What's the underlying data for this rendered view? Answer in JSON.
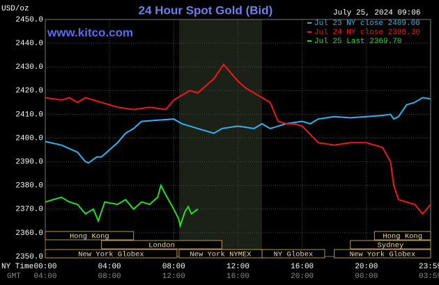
{
  "chart_data": {
    "type": "line",
    "title": "24 Hour Spot Gold (Bid)",
    "website": "www.kitco.com",
    "unit_label": "USD/oz",
    "timestamp": "July 25, 2024 09:06",
    "x_axis_label": "NY Time",
    "x_axis2_label": "GMT",
    "xlim": [
      0,
      24
    ],
    "ylim": [
      2350,
      2450
    ],
    "xticks": [
      {
        "value": 0,
        "label": "00:00"
      },
      {
        "value": 4,
        "label": "04:00"
      },
      {
        "value": 8,
        "label": "08:00"
      },
      {
        "value": 12,
        "label": "12:00"
      },
      {
        "value": 16,
        "label": "16:00"
      },
      {
        "value": 20,
        "label": "20:00"
      },
      {
        "value": 23.98,
        "label": "23:59"
      }
    ],
    "gmt_labels": [
      "04:00",
      "08:00",
      "12:00",
      "16:00",
      "20:00",
      "00:00",
      "03:59"
    ],
    "yticks": [
      {
        "value": 2350,
        "label": "2350.0"
      },
      {
        "value": 2360,
        "label": "2360.0"
      },
      {
        "value": 2370,
        "label": "2370.0"
      },
      {
        "value": 2380,
        "label": "2380.0"
      },
      {
        "value": 2390,
        "label": "2390.0"
      },
      {
        "value": 2400,
        "label": "2400.0"
      },
      {
        "value": 2410,
        "label": "2410.0"
      },
      {
        "value": 2420,
        "label": "2420.0"
      },
      {
        "value": 2430,
        "label": "2430.0"
      },
      {
        "value": 2440,
        "label": "2440.0"
      },
      {
        "value": 2450,
        "label": "2450.0"
      }
    ],
    "grid": true,
    "shaded_region": [
      8.33,
      13.5
    ],
    "series": [
      {
        "name": "Jul 23 NY close 2409.00",
        "color": "#29b6f0",
        "x": [
          0,
          1,
          2,
          2.5,
          2.7,
          3.2,
          3.5,
          4,
          4.5,
          5,
          5.5,
          6,
          7,
          8,
          8.5,
          9,
          9.5,
          10,
          10.5,
          11,
          12,
          13,
          13.5,
          14,
          14.5,
          15,
          16,
          16.5,
          17,
          18,
          19,
          20,
          21,
          21.5,
          21.7,
          22,
          22.5,
          23,
          23.5,
          24
        ],
        "values": [
          2398.5,
          2397,
          2394,
          2390,
          2389.5,
          2392,
          2392,
          2395,
          2398,
          2402,
          2404,
          2407,
          2407.5,
          2408,
          2406,
          2405,
          2404,
          2403,
          2402,
          2404,
          2405,
          2404,
          2406,
          2404,
          2405,
          2406,
          2407,
          2406,
          2408,
          2409,
          2408.5,
          2409,
          2409.5,
          2410,
          2408,
          2409,
          2414,
          2415,
          2417,
          2416.5
        ]
      },
      {
        "name": "Jul 24 NY close 2396.30",
        "color": "#f01818",
        "x": [
          0,
          1,
          1.5,
          2,
          2.5,
          3.5,
          4.5,
          5.5,
          6.5,
          7.5,
          8,
          8.5,
          9,
          9.5,
          10,
          10.5,
          11.1,
          12,
          12.5,
          13,
          14,
          14.5,
          15,
          15.5,
          16,
          17,
          18,
          19,
          20,
          21,
          21.5,
          21.7,
          22,
          23,
          23.5,
          24
        ],
        "values": [
          2417,
          2416,
          2417,
          2415,
          2417,
          2415,
          2413,
          2412,
          2413,
          2412,
          2416,
          2418,
          2420,
          2419,
          2422,
          2425,
          2431,
          2424,
          2421,
          2419,
          2415,
          2407,
          2406,
          2406,
          2405,
          2398,
          2397,
          2398,
          2398,
          2396,
          2390,
          2380,
          2374,
          2372,
          2368,
          2372
        ]
      },
      {
        "name": "Jul 25 Last 2369.70",
        "color": "#22e022",
        "x": [
          0,
          0.5,
          1,
          1.5,
          2,
          2.5,
          3,
          3.3,
          3.7,
          4.5,
          5,
          5.5,
          6,
          6.5,
          7,
          7.2,
          7.5,
          8,
          8.3,
          8.4,
          8.7,
          8.9,
          9.1,
          9.5
        ],
        "values": [
          2373,
          2374,
          2375,
          2373,
          2372,
          2368,
          2370,
          2365,
          2373,
          2372,
          2374,
          2370,
          2373,
          2372,
          2375,
          2380,
          2376,
          2370,
          2366,
          2363,
          2369,
          2371,
          2368,
          2370
        ]
      }
    ],
    "session_rows": [
      [
        {
          "label": "Hong Kong",
          "start": 0,
          "end": 5.5
        },
        {
          "label": "Hong Kong",
          "start": 20.5,
          "end": 24
        }
      ],
      [
        {
          "label": "London",
          "start": 3.5,
          "end": 11
        },
        {
          "label": "Sydney",
          "start": 19,
          "end": 24
        }
      ],
      [
        {
          "label": "New York Globex",
          "start": 0,
          "end": 8.2
        },
        {
          "label": "New York NYMEX",
          "start": 8.33,
          "end": 13.5
        },
        {
          "label": "NY Globex",
          "start": 13.5,
          "end": 17.4
        },
        {
          "label": "New York Globex",
          "start": 18,
          "end": 24
        }
      ]
    ]
  }
}
